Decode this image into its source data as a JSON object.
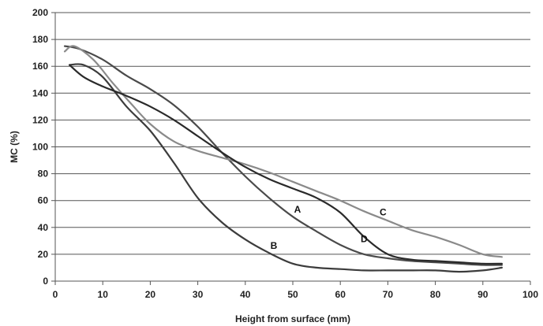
{
  "chart_data": {
    "type": "line",
    "title": "",
    "xlabel": "Height from surface (mm)",
    "ylabel": "MC (%)",
    "xlim": [
      0,
      100
    ],
    "ylim": [
      0,
      200
    ],
    "xticks": [
      0,
      10,
      20,
      30,
      40,
      50,
      60,
      70,
      80,
      90,
      100
    ],
    "yticks": [
      0,
      20,
      40,
      60,
      80,
      100,
      120,
      140,
      160,
      180,
      200
    ],
    "grid": "horizontal",
    "legend": "none",
    "series": [
      {
        "name": "A",
        "color": "#4a4a4a",
        "label_at": [
          51,
          51
        ],
        "x": [
          2,
          5,
          10,
          15,
          20,
          25,
          30,
          35,
          40,
          45,
          50,
          55,
          60,
          65,
          70,
          75,
          80,
          85,
          90,
          94
        ],
        "y": [
          175,
          173,
          165,
          153,
          143,
          131,
          115,
          96,
          78,
          62,
          48,
          37,
          27,
          20,
          17,
          15,
          14,
          13,
          12,
          12
        ]
      },
      {
        "name": "B",
        "color": "#3c3c3c",
        "label_at": [
          46,
          24
        ],
        "x": [
          3,
          6,
          10,
          15,
          20,
          25,
          30,
          35,
          40,
          45,
          50,
          55,
          60,
          65,
          70,
          75,
          80,
          85,
          90,
          94
        ],
        "y": [
          161,
          161,
          152,
          130,
          112,
          88,
          62,
          44,
          31,
          21,
          13,
          10,
          9,
          8,
          8,
          8,
          8,
          7,
          8,
          10
        ]
      },
      {
        "name": "C",
        "color": "#8a8a8a",
        "label_at": [
          69,
          49
        ],
        "x": [
          2,
          4,
          8,
          12,
          16,
          20,
          25,
          30,
          35,
          40,
          45,
          50,
          55,
          60,
          65,
          70,
          75,
          80,
          85,
          90,
          94
        ],
        "y": [
          171,
          175,
          165,
          148,
          132,
          117,
          104,
          97,
          92,
          87,
          81,
          74,
          67,
          60,
          52,
          45,
          38,
          33,
          27,
          20,
          18
        ]
      },
      {
        "name": "D",
        "color": "#2a2a2a",
        "label_at": [
          65,
          29
        ],
        "x": [
          3,
          6,
          10,
          15,
          20,
          25,
          30,
          35,
          40,
          45,
          50,
          55,
          60,
          65,
          70,
          75,
          80,
          85,
          90,
          94
        ],
        "y": [
          161,
          152,
          145,
          138,
          130,
          120,
          108,
          96,
          85,
          76,
          69,
          62,
          51,
          33,
          20,
          16,
          15,
          14,
          13,
          13
        ]
      }
    ]
  }
}
